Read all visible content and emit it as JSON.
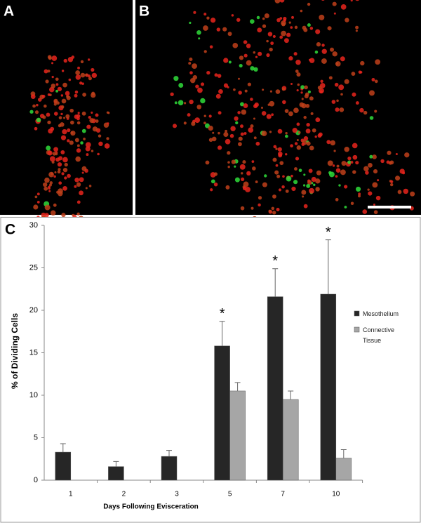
{
  "panels": {
    "a": {
      "label": "A"
    },
    "b": {
      "label": "B"
    }
  },
  "chart_data": {
    "type": "bar",
    "panel_label": "C",
    "x_label": "Days Following Evisceration",
    "y_label": "% of Dividing Cells",
    "categories": [
      "1",
      "2",
      "3",
      "5",
      "7",
      "10"
    ],
    "series": [
      {
        "name": "Mesothelium",
        "color": "#262626",
        "values": [
          3.3,
          1.6,
          2.8,
          15.8,
          21.6,
          21.9
        ],
        "errors": [
          1.0,
          0.6,
          0.7,
          2.9,
          3.3,
          6.4
        ]
      },
      {
        "name": "Connective Tissue",
        "color": "#a6a6a6",
        "values": [
          null,
          null,
          null,
          10.5,
          9.5,
          2.6
        ],
        "errors": [
          null,
          null,
          null,
          1.0,
          1.0,
          1.0
        ]
      }
    ],
    "annotations": [
      null,
      null,
      null,
      "*",
      "*",
      "*"
    ],
    "ylim": [
      0,
      30
    ],
    "yticks": [
      0,
      5,
      10,
      15,
      20,
      25,
      30
    ],
    "legend": "right"
  }
}
